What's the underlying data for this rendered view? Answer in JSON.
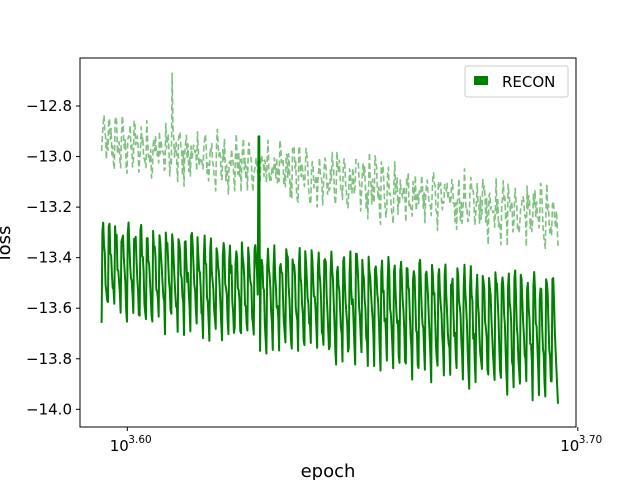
{
  "chart_data": {
    "type": "line",
    "title": "",
    "xlabel": "epoch",
    "ylabel": "loss",
    "x_scale": "log10",
    "xlim_log10": [
      3.5895,
      3.6996
    ],
    "ylim": [
      -14.07,
      -12.61
    ],
    "grid": false,
    "legend": {
      "position": "top-right",
      "entries": [
        "RECON"
      ]
    },
    "colors": {
      "solid": "#008000",
      "dashed": "#80c080"
    },
    "x_ticks": [
      {
        "base": "10",
        "exp": "3.60",
        "log10": 3.6
      },
      {
        "base": "10",
        "exp": "3.70",
        "log10": 3.7
      }
    ],
    "y_ticks": [
      "−12.8",
      "−13.0",
      "−13.2",
      "−13.4",
      "−13.6",
      "−13.8",
      "−14.0"
    ],
    "y_tick_values": [
      -12.8,
      -13.0,
      -13.2,
      -13.4,
      -13.6,
      -13.8,
      -14.0
    ],
    "series": [
      {
        "name": "RECON",
        "style": "solid",
        "color": "#008000",
        "x_range_log10": [
          3.5943,
          3.6956
        ],
        "cycles": 72,
        "peak_start": -13.25,
        "peak_end": -13.45,
        "trough_start": -13.62,
        "trough_end": -13.94,
        "noise": 0.05,
        "spike_log10": 3.6292,
        "spike_value": -12.92,
        "min_value": -14.0
      },
      {
        "style": "dashed",
        "color": "#80c080",
        "x_range_log10": [
          3.5943,
          3.6956
        ],
        "cycles": 72,
        "peak_start": -12.87,
        "peak_end": -13.15,
        "trough_start": -13.0,
        "trough_end": -13.33,
        "noise": 0.07,
        "spike_log10": 3.61,
        "spike_value": -12.67
      }
    ]
  }
}
